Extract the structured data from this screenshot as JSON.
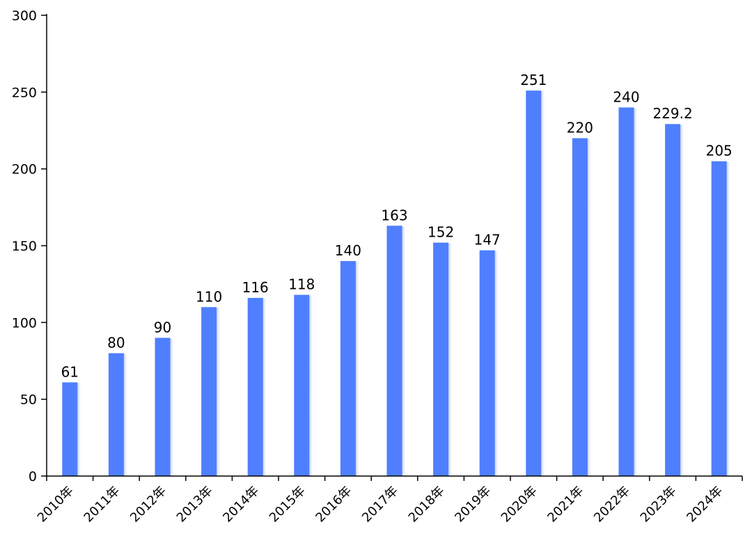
{
  "chart_data": {
    "type": "bar",
    "title": "",
    "xlabel": "",
    "ylabel": "",
    "ylim": [
      0,
      300
    ],
    "yticks": [
      0,
      50,
      100,
      150,
      200,
      250,
      300
    ],
    "grid": false,
    "legend": "none",
    "categories": [
      "2010年",
      "2011年",
      "2012年",
      "2013年",
      "2014年",
      "2015年",
      "2016年",
      "2017年",
      "2018年",
      "2019年",
      "2020年",
      "2021年",
      "2022年",
      "2023年",
      "2024年"
    ],
    "series": [
      {
        "values": [
          61,
          80,
          90,
          110,
          116,
          118,
          140,
          163,
          152,
          147,
          251,
          220,
          240,
          229.2,
          205
        ],
        "labels": [
          "61",
          "80",
          "90",
          "110",
          "116",
          "118",
          "140",
          "163",
          "152",
          "147",
          "251",
          "220",
          "240",
          "229.2",
          "205"
        ],
        "color": "#4f7ffe"
      }
    ]
  }
}
